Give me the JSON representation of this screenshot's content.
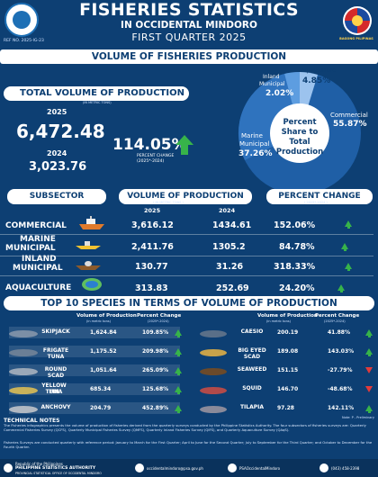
{
  "header": {
    "title": "FISHERIES STATISTICS",
    "region": "IN OCCIDENTAL MINDORO",
    "period": "FIRST QUARTER 2025",
    "ref_no": "REF NO. 2025-IG-23",
    "bp_label": "BAGONG PILIPINAS"
  },
  "volume_banner": "VOLUME OF FISHERIES PRODUCTION",
  "total": {
    "label": "TOTAL VOLUME OF PRODUCTION",
    "unit": "(IN METRIC TONS)",
    "year_2025": "2025",
    "value_2025": "6,472.48",
    "year_2024": "2024",
    "value_2024": "3,023.76",
    "pct": "114.05%",
    "pct_label1": "PERCENT CHANGE",
    "pct_label2": "(2025*-2024)"
  },
  "pie": {
    "center1": "Percent",
    "center2": "Share to",
    "center3": "Total",
    "center4": "Production",
    "slices": [
      {
        "name": "Commercial",
        "value": "55.87%"
      },
      {
        "name": "Marine Municipal",
        "value": "37.26%"
      },
      {
        "name": "Inland Municipal",
        "value": "2.02%"
      },
      {
        "name": "Aquaculture",
        "value": "4.85%"
      }
    ],
    "colors": [
      "#1f5fa6",
      "#1f5fa6",
      "#2b78c8",
      "#2b78c8"
    ]
  },
  "subsector": {
    "head_sub": "SUBSECTOR",
    "head_vol": "VOLUME OF PRODUCTION",
    "head_vol_unit": "( IN METRIC TONS )",
    "head_pct": "PERCENT CHANGE",
    "head_pct_unit": "( 2025*-2024 )",
    "year1": "2025",
    "year2": "2024",
    "rows": [
      {
        "name1": "COMMERCIAL",
        "name2": "",
        "v2025": "3,616.12",
        "v2024": "1434.61",
        "pct": "152.06%"
      },
      {
        "name1": "MARINE",
        "name2": "MUNICIPAL",
        "v2025": "2,411.76",
        "v2024": "1305.2",
        "pct": "84.78%"
      },
      {
        "name1": "INLAND",
        "name2": "MUNICIPAL",
        "v2025": "130.77",
        "v2024": "31.26",
        "pct": "318.33%"
      },
      {
        "name1": "AQUACULTURE",
        "name2": "",
        "v2025": "313.83",
        "v2024": "252.69",
        "pct": "24.20%"
      }
    ]
  },
  "top10": {
    "banner": "TOP 10 SPECIES IN TERMS OF VOLUME OF PRODUCTION",
    "head_vol": "Volume of Production",
    "head_vol_unit": "(in metric tons)",
    "head_pct": "Percent Change",
    "head_pct_unit": "(2025*-2024)",
    "left": [
      {
        "name1": "SKIPJACK",
        "name2": "",
        "vol": "1,624.84",
        "pct": "109.85%",
        "dir": "up"
      },
      {
        "name1": "FRIGATE TUNA",
        "name2": "",
        "vol": "1,175.52",
        "pct": "209.98%",
        "dir": "up"
      },
      {
        "name1": "ROUND SCAD",
        "name2": "",
        "vol": "1,051.64",
        "pct": "265.09%",
        "dir": "up"
      },
      {
        "name1": "YELLOW FIN",
        "name2": "TUNA",
        "vol": "685.34",
        "pct": "125.68%",
        "dir": "up"
      },
      {
        "name1": "ANCHOVY",
        "name2": "",
        "vol": "204.79",
        "pct": "452.89%",
        "dir": "up"
      }
    ],
    "right": [
      {
        "name1": "CAESIO",
        "vol": "200.19",
        "pct": "41.88%",
        "dir": "up"
      },
      {
        "name1": "BIG EYED SCAD",
        "vol": "189.08",
        "pct": "143.03%",
        "dir": "up"
      },
      {
        "name1": "SEAWEED",
        "vol": "151.15",
        "pct": "-27.79%",
        "dir": "down"
      },
      {
        "name1": "SQUID",
        "vol": "146.70",
        "pct": "-48.68%",
        "dir": "down"
      },
      {
        "name1": "TILAPIA",
        "vol": "97.28",
        "pct": "142.11%",
        "dir": "up"
      }
    ]
  },
  "notes": {
    "note_p": "Note: P - Preliminary",
    "heading": "TECHNICAL NOTES",
    "p1": "The Fisheries infographics presents the volume of production of fisheries derived from the quarterly surveys conducted by the Philippine Statistics Authority. The four subsectors of fisheries surveys are: Quarterly Commercial Fisheries Survey (QCFS), Quarterly Municipal Fisheries Survey (QMFS), Quarterly Inland Fisheries Survey (QIFS), and Quarterly Aquaculture Survey (QAqS).",
    "p2": "Fisheries Surveys are conducted quarterly with reference period: January to March for the First Quarter; April to June for the Second Quarter; July to September for the Third Quarter; and October to December for the Fourth Quarter."
  },
  "footer": {
    "org1": "Republic of the Philippines",
    "org2": "PHILIPPINE STATISTICS AUTHORITY",
    "org3": "PROVINCIAL STATISTICAL OFFICE OF OCCIDENTAL MINDORO",
    "email": "occidentalmindoro@psa.gov.ph",
    "fb": "PSAOccidentalMindoro",
    "phone": "(043) 458-2398"
  },
  "colors": {
    "bg": "#0d3f73",
    "up": "#37b34a",
    "down": "#e23b3b"
  }
}
